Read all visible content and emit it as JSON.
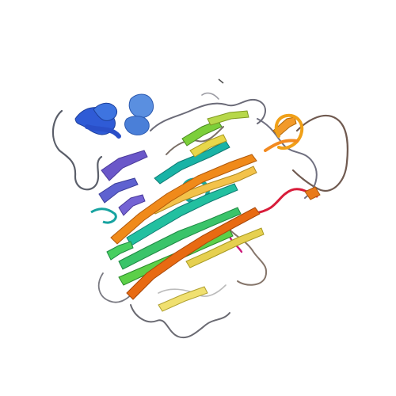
{
  "image": {
    "subject": "protein-cartoon-rainbow",
    "background": "#ffffff",
    "palette": {
      "blue": "#2f5bd6",
      "lightblue": "#5a8fe0",
      "purple": "#6a57c9",
      "teal": "#19b3a6",
      "green": "#3ac46a",
      "yellowgreen": "#b7d84a",
      "yellow": "#e8d74a",
      "orange": "#f08a1a",
      "orange2": "#e86a12",
      "red": "#d81c3a",
      "magenta": "#d2107a",
      "coil": "#606070"
    }
  }
}
